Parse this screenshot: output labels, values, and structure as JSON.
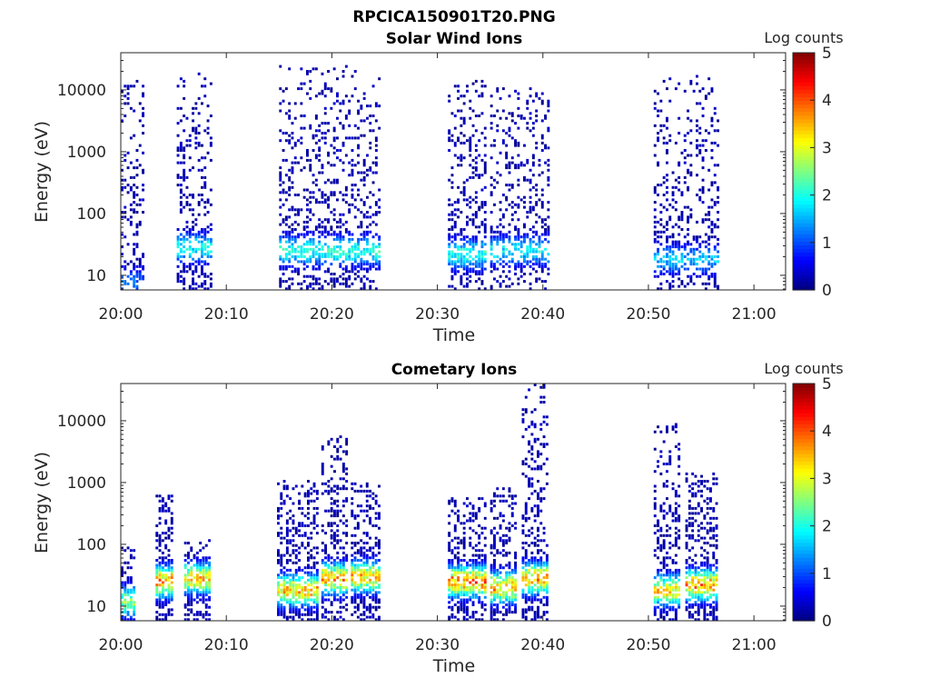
{
  "figure_title": "RPCICA150901T20.PNG",
  "chart_data": [
    {
      "type": "heatmap",
      "title": "Solar Wind Ions",
      "xlabel": "Time",
      "ylabel": "Energy (eV)",
      "x_tick_labels": [
        "20:00",
        "20:10",
        "20:20",
        "20:30",
        "20:40",
        "20:50",
        "21:00"
      ],
      "xlim_minutes": [
        0,
        63
      ],
      "y_scale": "log",
      "ylim": [
        5.8,
        40000
      ],
      "y_tick_labels": [
        "10",
        "100",
        "1000",
        "10000"
      ],
      "y_tick_values": [
        10,
        100,
        1000,
        10000
      ],
      "colorbar": {
        "label": "Log counts",
        "range": [
          0,
          5
        ],
        "tick_labels": [
          "0",
          "1",
          "2",
          "3",
          "4",
          "5"
        ],
        "colormap": "jet"
      },
      "grid": false,
      "bursts": [
        {
          "start_min": 0.0,
          "end_min": 2.0,
          "max_energy": 15000,
          "peak_energy": 8,
          "peak_log": 1.2,
          "density": 0.45
        },
        {
          "start_min": 5.3,
          "end_min": 8.7,
          "max_energy": 20000,
          "peak_energy": 28,
          "peak_log": 2.0,
          "density": 0.6
        },
        {
          "start_min": 15.0,
          "end_min": 24.5,
          "max_energy": 25000,
          "peak_energy": 25,
          "peak_log": 2.1,
          "density": 0.55
        },
        {
          "start_min": 31.0,
          "end_min": 34.5,
          "max_energy": 15000,
          "peak_energy": 22,
          "peak_log": 2.1,
          "density": 0.6
        },
        {
          "start_min": 35.0,
          "end_min": 40.5,
          "max_energy": 12000,
          "peak_energy": 25,
          "peak_log": 1.9,
          "density": 0.5
        },
        {
          "start_min": 50.5,
          "end_min": 56.5,
          "max_energy": 18000,
          "peak_energy": 18,
          "peak_log": 1.6,
          "density": 0.5
        }
      ]
    },
    {
      "type": "heatmap",
      "title": "Cometary Ions",
      "xlabel": "Time",
      "ylabel": "Energy (eV)",
      "x_tick_labels": [
        "20:00",
        "20:10",
        "20:20",
        "20:30",
        "20:40",
        "20:50",
        "21:00"
      ],
      "xlim_minutes": [
        0,
        63
      ],
      "y_scale": "log",
      "ylim": [
        5.8,
        40000
      ],
      "y_tick_labels": [
        "10",
        "100",
        "1000",
        "10000"
      ],
      "y_tick_values": [
        10,
        100,
        1000,
        10000
      ],
      "colorbar": {
        "label": "Log counts",
        "range": [
          0,
          5
        ],
        "tick_labels": [
          "0",
          "1",
          "2",
          "3",
          "4",
          "5"
        ],
        "colormap": "jet"
      },
      "grid": false,
      "bursts": [
        {
          "start_min": 0.0,
          "end_min": 1.3,
          "max_energy": 90,
          "peak_energy": 12,
          "peak_log": 2.6,
          "density": 0.8
        },
        {
          "start_min": 3.3,
          "end_min": 5.0,
          "max_energy": 700,
          "peak_energy": 25,
          "peak_log": 3.7,
          "density": 0.8
        },
        {
          "start_min": 6.0,
          "end_min": 8.5,
          "max_energy": 120,
          "peak_energy": 28,
          "peak_log": 3.4,
          "density": 0.75
        },
        {
          "start_min": 14.8,
          "end_min": 18.5,
          "max_energy": 1100,
          "peak_energy": 18,
          "peak_log": 3.5,
          "density": 0.75
        },
        {
          "start_min": 19.0,
          "end_min": 21.5,
          "max_energy": 6000,
          "peak_energy": 28,
          "peak_log": 3.6,
          "density": 0.7
        },
        {
          "start_min": 21.8,
          "end_min": 24.5,
          "max_energy": 1000,
          "peak_energy": 30,
          "peak_log": 3.5,
          "density": 0.75
        },
        {
          "start_min": 31.0,
          "end_min": 34.5,
          "max_energy": 600,
          "peak_energy": 25,
          "peak_log": 3.8,
          "density": 0.75
        },
        {
          "start_min": 35.0,
          "end_min": 37.5,
          "max_energy": 800,
          "peak_energy": 20,
          "peak_log": 3.6,
          "density": 0.75
        },
        {
          "start_min": 38.0,
          "end_min": 40.5,
          "max_energy": 40000,
          "peak_energy": 28,
          "peak_log": 3.6,
          "density": 0.7
        },
        {
          "start_min": 50.5,
          "end_min": 53.0,
          "max_energy": 10000,
          "peak_energy": 18,
          "peak_log": 3.3,
          "density": 0.7
        },
        {
          "start_min": 53.5,
          "end_min": 56.5,
          "max_energy": 1400,
          "peak_energy": 22,
          "peak_log": 3.7,
          "density": 0.75
        }
      ]
    }
  ]
}
